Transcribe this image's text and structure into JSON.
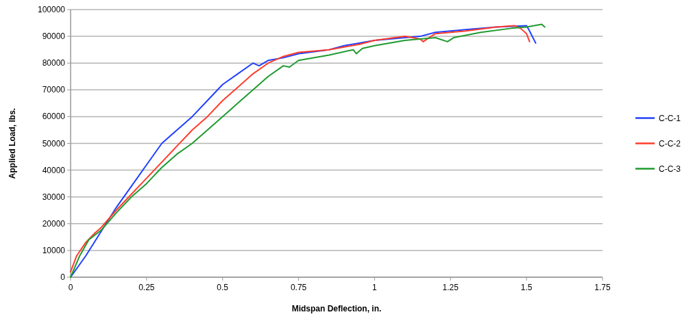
{
  "chart_data": {
    "type": "line",
    "xlabel": "Midspan Deflection, in.",
    "ylabel": "Applied Load, lbs.",
    "xlim": [
      0,
      1.75
    ],
    "xticks": [
      0,
      0.25,
      0.5,
      0.75,
      1,
      1.25,
      1.5,
      1.75
    ],
    "ylim": [
      0,
      100000
    ],
    "yticks": [
      0,
      10000,
      20000,
      30000,
      40000,
      50000,
      60000,
      70000,
      80000,
      90000,
      100000
    ],
    "grid": "y",
    "legend": "right",
    "marker": "none",
    "line_style": "solid",
    "series": [
      {
        "name": "C-C-1",
        "color": "#1f3fff",
        "x": [
          0,
          0.05,
          0.1,
          0.15,
          0.2,
          0.25,
          0.3,
          0.35,
          0.4,
          0.45,
          0.5,
          0.55,
          0.6,
          0.62,
          0.65,
          0.7,
          0.75,
          0.85,
          0.9,
          1.0,
          1.1,
          1.15,
          1.2,
          1.3,
          1.4,
          1.5,
          1.51,
          1.53
        ],
        "values": [
          0,
          8000,
          17000,
          26000,
          34000,
          42000,
          50000,
          55000,
          60000,
          66000,
          72000,
          76000,
          80000,
          79000,
          81000,
          82000,
          83500,
          85000,
          86500,
          88500,
          89500,
          90000,
          91500,
          92500,
          93500,
          94000,
          92000,
          87500
        ]
      },
      {
        "name": "C-C-2",
        "color": "#ff3b2b",
        "x": [
          0,
          0.02,
          0.05,
          0.08,
          0.1,
          0.15,
          0.2,
          0.25,
          0.3,
          0.35,
          0.4,
          0.45,
          0.5,
          0.55,
          0.6,
          0.65,
          0.7,
          0.75,
          0.85,
          0.95,
          1.0,
          1.1,
          1.15,
          1.16,
          1.2,
          1.3,
          1.4,
          1.46,
          1.48,
          1.5,
          1.51
        ],
        "values": [
          2000,
          8000,
          13000,
          16500,
          18500,
          25000,
          31000,
          37000,
          43000,
          49000,
          55000,
          60000,
          66000,
          71000,
          76000,
          80000,
          82500,
          84000,
          85000,
          87000,
          88500,
          90000,
          89000,
          88000,
          91000,
          92000,
          93500,
          94000,
          93000,
          91000,
          88000
        ]
      },
      {
        "name": "C-C-3",
        "color": "#1e9a2e",
        "x": [
          0,
          0.03,
          0.06,
          0.1,
          0.15,
          0.2,
          0.25,
          0.3,
          0.35,
          0.4,
          0.45,
          0.5,
          0.55,
          0.6,
          0.65,
          0.7,
          0.72,
          0.75,
          0.85,
          0.93,
          0.94,
          0.96,
          1.0,
          1.1,
          1.2,
          1.24,
          1.26,
          1.35,
          1.45,
          1.5,
          1.55,
          1.56
        ],
        "values": [
          0,
          8000,
          14000,
          17500,
          24000,
          30000,
          35000,
          41000,
          46000,
          50000,
          55000,
          60000,
          65000,
          70000,
          75000,
          79000,
          78500,
          81000,
          83000,
          85000,
          83500,
          85500,
          86500,
          88500,
          89500,
          88000,
          89500,
          91500,
          93000,
          93500,
          94500,
          93500
        ]
      }
    ]
  }
}
